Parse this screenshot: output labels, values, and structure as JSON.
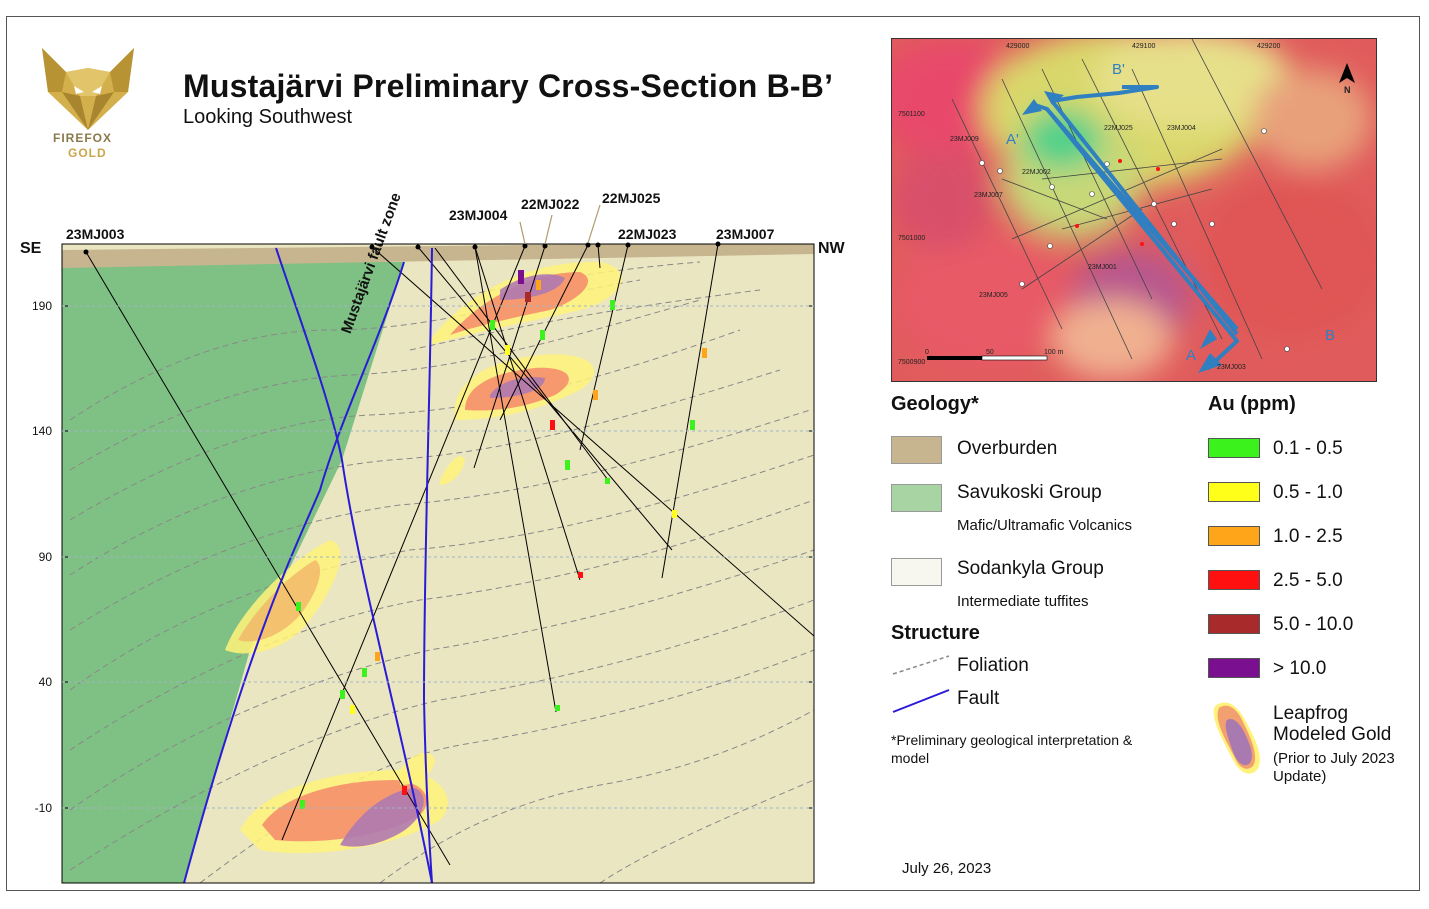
{
  "header": {
    "title": "Mustajärvi Preliminary Cross-Section B-B’",
    "subtitle": "Looking Southwest"
  },
  "logo": {
    "line1": "FIREFOX",
    "line2": "GOLD",
    "icon": "fox-head-logo"
  },
  "section": {
    "left_end": "SE",
    "right_end": "NW",
    "fault_zone_label": "Mustajärvi fault zone",
    "elevation_ticks": [
      "190",
      "140",
      "90",
      "40",
      "-10"
    ],
    "drill_holes": [
      "23MJ003",
      "23MJ004",
      "22MJ022",
      "22MJ025",
      "22MJ023",
      "23MJ007"
    ]
  },
  "map": {
    "easting_ticks": [
      "429000",
      "429100",
      "429200"
    ],
    "northing_ticks": [
      "7501100",
      "7501000",
      "7500900"
    ],
    "hole_labels": [
      "23MJ009",
      "22MJ025",
      "23MJ004",
      "22MJ002",
      "23MJ007",
      "23MJ001",
      "23MJ005",
      "23MJ003"
    ],
    "section_markers": {
      "a": "A",
      "a_prime": "A'",
      "b": "B",
      "b_prime": "B'"
    },
    "scale_labels": [
      "0",
      "50",
      "100 m"
    ],
    "north_label": "N",
    "line_color": "#2f7fc1"
  },
  "legend": {
    "geology_title": "Geology*",
    "geology_items": [
      {
        "label": "Overburden",
        "sub": "",
        "color": "#c6b58f"
      },
      {
        "label": "Savukoski Group",
        "sub": "Mafic/Ultramafic Volcanics",
        "color": "#a7d4a2"
      },
      {
        "label": "Sodankyla Group",
        "sub": "Intermediate tuffites",
        "color": "#f7f7f0"
      }
    ],
    "structure_title": "Structure",
    "structure_items": [
      {
        "label": "Foliation"
      },
      {
        "label": "Fault",
        "color": "#2a1bd6"
      }
    ],
    "note": "*Preliminary geological interpretation & model",
    "au_title": "Au (ppm)",
    "au_items": [
      {
        "label": "0.1 - 0.5",
        "color": "#3cf21d"
      },
      {
        "label": "0.5 - 1.0",
        "color": "#ffff1a"
      },
      {
        "label": "1.0 - 2.5",
        "color": "#ffa51a"
      },
      {
        "label": "2.5 - 5.0",
        "color": "#ff1010"
      },
      {
        "label": "5.0 - 10.0",
        "color": "#a92a2a"
      },
      {
        "label": "> 10.0",
        "color": "#7a0f8f"
      }
    ],
    "leapfrog_line1": "Leapfrog",
    "leapfrog_line2": "Modeled Gold",
    "leapfrog_line3": "(Prior to July 2023",
    "leapfrog_line4": "Update)"
  },
  "date": "July 26, 2023"
}
